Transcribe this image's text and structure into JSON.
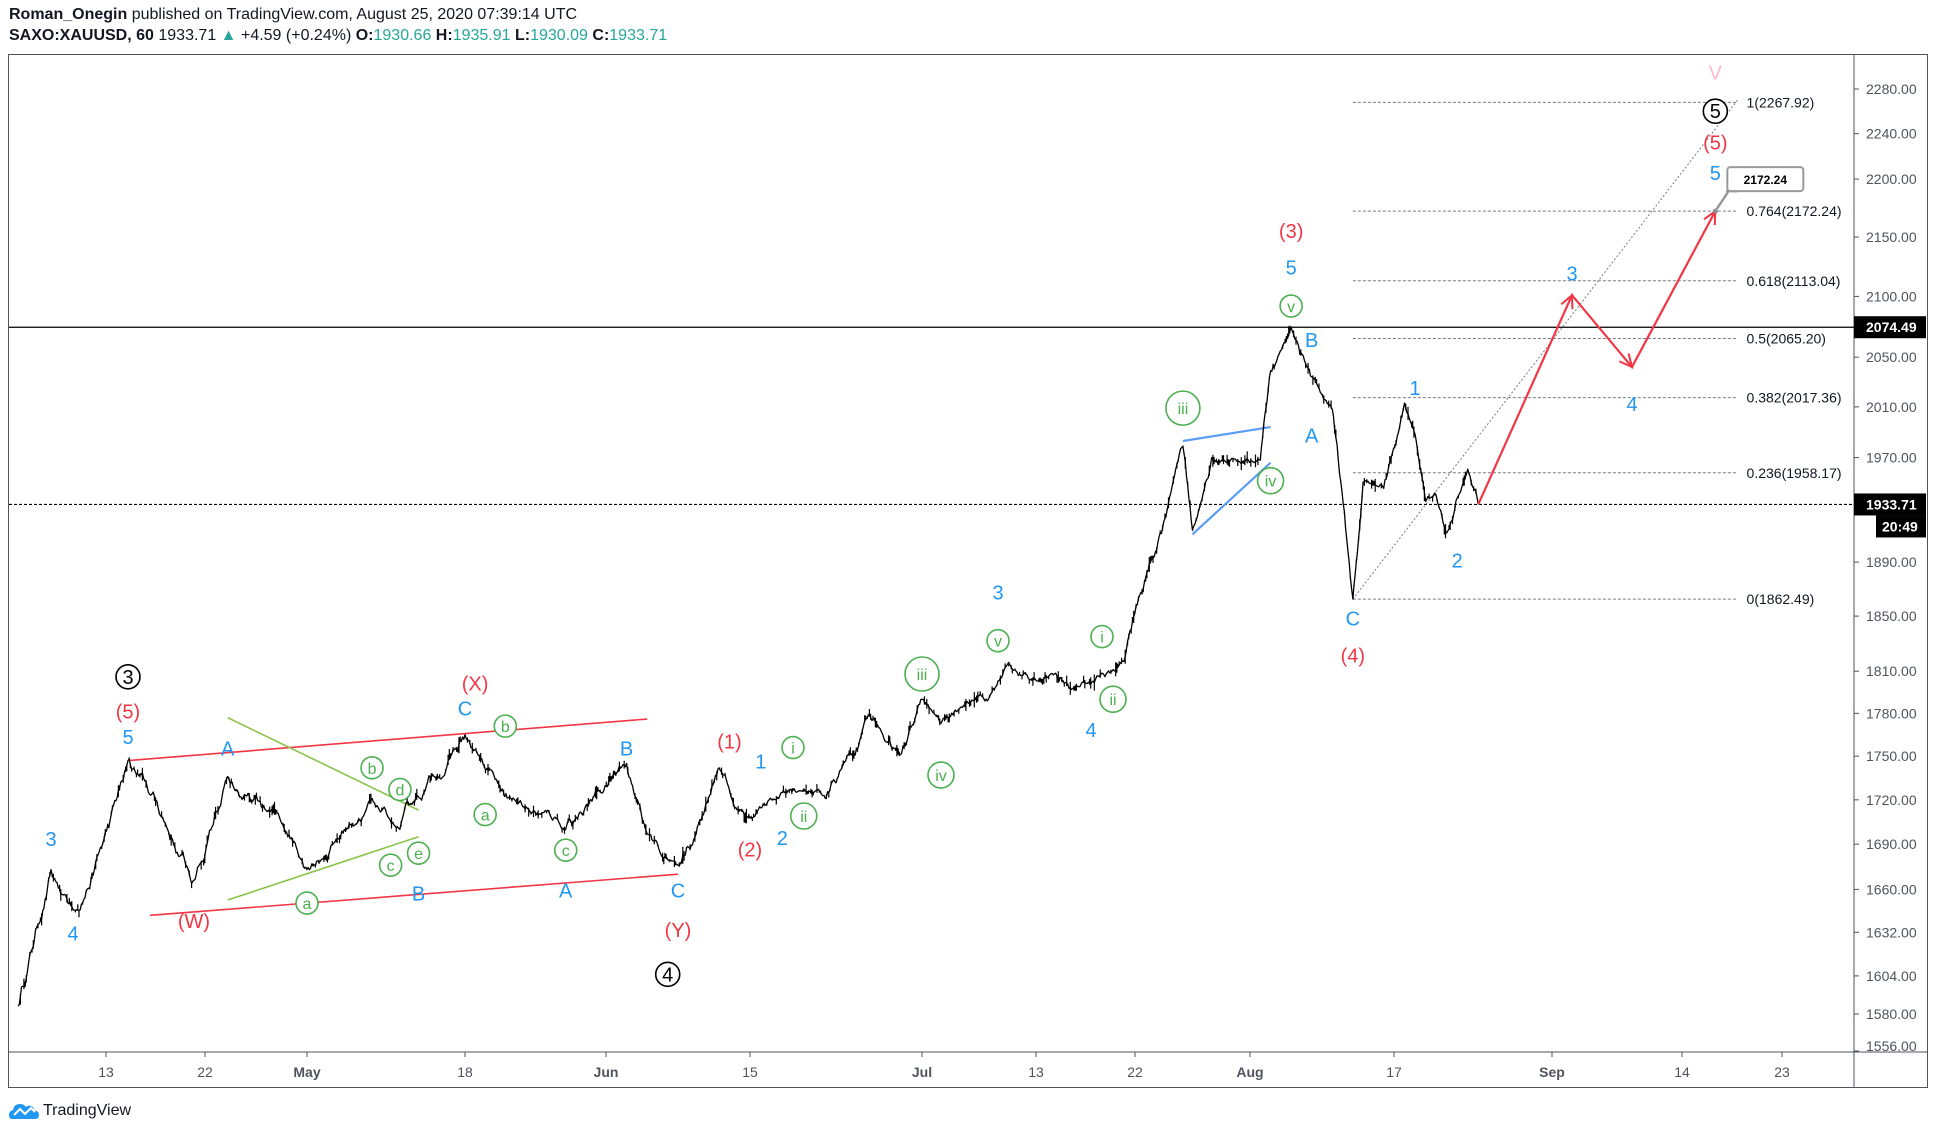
{
  "header": {
    "author": "Roman_Onegin",
    "published": "published on TradingView.com, August 25, 2020 07:39:14 UTC",
    "symbol": "SAXO:XAUUSD, 60",
    "last": "1933.71",
    "change": "+4.59 (+0.24%)",
    "o_label": "O:",
    "o": "1930.66",
    "h_label": "H:",
    "h": "1935.91",
    "l_label": "L:",
    "l": "1930.09",
    "c_label": "C:",
    "c": "1933.71"
  },
  "footer": {
    "brand": "TradingView"
  },
  "colors": {
    "blue": "#2196f3",
    "red": "#f23645",
    "green": "#4caf50",
    "black": "#000000",
    "pink": "#f8bbd0",
    "ohlc": "#26a69a",
    "channel_red": "#f23645",
    "triangle_green": "#8bc34a",
    "wedge_blue": "#5b9cf6"
  },
  "chart_data": {
    "type": "line",
    "title": "",
    "y_scale": "log",
    "ylim": [
      1556,
      2300
    ],
    "xlim": [
      "2020-04-05",
      "2020-09-28"
    ],
    "grid": false,
    "y_ticks": [
      "2280.00",
      "2240.00",
      "2200.00",
      "2150.00",
      "2100.00",
      "2050.00",
      "2010.00",
      "1970.00",
      "1890.00",
      "1850.00",
      "1810.00",
      "1780.00",
      "1750.00",
      "1720.00",
      "1690.00",
      "1660.00",
      "1632.00",
      "1604.00",
      "1580.00",
      "1556.00"
    ],
    "x_ticks": [
      {
        "date": "2020-04-13",
        "label": "13"
      },
      {
        "date": "2020-04-22",
        "label": "22"
      },
      {
        "date": "2020-05-01",
        "label": "May",
        "bold": true
      },
      {
        "date": "2020-05-18",
        "label": "18"
      },
      {
        "date": "2020-06-01",
        "label": "Jun",
        "bold": true
      },
      {
        "date": "2020-06-15",
        "label": "15"
      },
      {
        "date": "2020-07-01",
        "label": "Jul",
        "bold": true
      },
      {
        "date": "2020-07-13",
        "label": "13"
      },
      {
        "date": "2020-07-22",
        "label": "22"
      },
      {
        "date": "2020-08-03",
        "label": "Aug",
        "bold": true
      },
      {
        "date": "2020-08-17",
        "label": "17"
      },
      {
        "date": "2020-09-01",
        "label": "Sep",
        "bold": true
      },
      {
        "date": "2020-09-14",
        "label": "14"
      },
      {
        "date": "2020-09-23",
        "label": "23"
      }
    ],
    "price_swings": [
      [
        "2020-04-05",
        1585
      ],
      [
        "2020-04-08",
        1673
      ],
      [
        "2020-04-10",
        1647
      ],
      [
        "2020-04-15",
        1747
      ],
      [
        "2020-04-21",
        1666
      ],
      [
        "2020-04-24",
        1736
      ],
      [
        "2020-05-01",
        1673
      ],
      [
        "2020-05-08",
        1721
      ],
      [
        "2020-05-11",
        1700
      ],
      [
        "2020-05-18",
        1765
      ],
      [
        "2020-05-21",
        1734
      ],
      [
        "2020-05-28",
        1700
      ],
      [
        "2020-06-03",
        1745
      ],
      [
        "2020-06-05",
        1697
      ],
      [
        "2020-06-08",
        1676
      ],
      [
        "2020-06-12",
        1742
      ],
      [
        "2020-06-15",
        1708
      ],
      [
        "2020-06-18",
        1725
      ],
      [
        "2020-06-22",
        1721
      ],
      [
        "2020-06-26",
        1779
      ],
      [
        "2020-06-29",
        1751
      ],
      [
        "2020-07-01",
        1790
      ],
      [
        "2020-07-03",
        1773
      ],
      [
        "2020-07-08",
        1790
      ],
      [
        "2020-07-10",
        1815
      ],
      [
        "2020-07-17",
        1799
      ],
      [
        "2020-07-21",
        1817
      ],
      [
        "2020-07-24",
        1894
      ],
      [
        "2020-07-27",
        1979
      ],
      [
        "2020-07-28",
        1914
      ],
      [
        "2020-07-30",
        1970
      ],
      [
        "2020-08-04",
        1968
      ],
      [
        "2020-08-05",
        2039
      ],
      [
        "2020-08-07",
        2074.49
      ],
      [
        "2020-08-09",
        2034
      ],
      [
        "2020-08-11",
        2008
      ],
      [
        "2020-08-13",
        1862.49
      ],
      [
        "2020-08-14",
        1951
      ],
      [
        "2020-08-16",
        1946
      ],
      [
        "2020-08-18",
        2013
      ],
      [
        "2020-08-19",
        1988
      ],
      [
        "2020-08-20",
        1936
      ],
      [
        "2020-08-21",
        1941
      ],
      [
        "2020-08-22",
        1912
      ],
      [
        "2020-08-24",
        1961
      ],
      [
        "2020-08-25",
        1933.71
      ]
    ],
    "price_labels": {
      "high_line": "2074.49",
      "last": "1933.71",
      "countdown": "20:49"
    },
    "fib": {
      "start": "2020-08-13",
      "end": "2020-09-19",
      "levels": [
        {
          "price": 2267.92,
          "label": "1(2267.92)"
        },
        {
          "price": 2172.24,
          "label": "0.764(2172.24)"
        },
        {
          "price": 2113.04,
          "label": "0.618(2113.04)"
        },
        {
          "price": 2065.2,
          "label": "0.5(2065.20)"
        },
        {
          "price": 2017.36,
          "label": "0.382(2017.36)"
        },
        {
          "price": 1958.17,
          "label": "0.236(1958.17)"
        },
        {
          "price": 1862.49,
          "label": "0(1862.49)"
        }
      ]
    },
    "fib_trendline": [
      [
        "2020-08-13",
        1862.49
      ],
      [
        "2020-09-19",
        2270
      ]
    ],
    "callout": {
      "text": "2172.24",
      "date": "2020-09-17",
      "price": 2172.24
    },
    "projection_path": [
      [
        "2020-08-25",
        1933.71
      ],
      [
        "2020-09-03",
        2101
      ],
      [
        "2020-09-09",
        2042
      ],
      [
        "2020-09-17",
        2172.24
      ]
    ],
    "red_channel": [
      [
        [
          "2020-04-15",
          1747
        ],
        [
          "2020-06-05",
          1776
        ]
      ],
      [
        [
          "2020-04-17",
          1643
        ],
        [
          "2020-06-08",
          1670
        ]
      ]
    ],
    "green_triangle": [
      [
        [
          "2020-04-24",
          1777
        ],
        [
          "2020-05-13",
          1713
        ]
      ],
      [
        [
          "2020-04-24",
          1653
        ],
        [
          "2020-05-13",
          1695
        ]
      ]
    ],
    "blue_wedge": [
      [
        [
          "2020-07-27",
          1983
        ],
        [
          "2020-08-05",
          1994
        ]
      ],
      [
        [
          "2020-07-28",
          1911
        ],
        [
          "2020-08-05",
          1966
        ]
      ]
    ],
    "annotations": [
      {
        "t": "3",
        "c": "black",
        "circle": true,
        "d": "2020-04-15",
        "p": 1806
      },
      {
        "t": "(5)",
        "c": "red",
        "d": "2020-04-15",
        "p": 1782
      },
      {
        "t": "5",
        "c": "blue",
        "d": "2020-04-15",
        "p": 1764
      },
      {
        "t": "3",
        "c": "blue",
        "d": "2020-04-08",
        "p": 1694
      },
      {
        "t": "4",
        "c": "blue",
        "d": "2020-04-10",
        "p": 1632
      },
      {
        "t": "(W)",
        "c": "red",
        "d": "2020-04-21",
        "p": 1640
      },
      {
        "t": "A",
        "c": "blue",
        "d": "2020-04-24",
        "p": 1756
      },
      {
        "t": "a",
        "c": "green",
        "circle": true,
        "d": "2020-05-01",
        "p": 1651
      },
      {
        "t": "b",
        "c": "green",
        "circle": true,
        "d": "2020-05-08",
        "p": 1742
      },
      {
        "t": "c",
        "c": "green",
        "circle": true,
        "d": "2020-05-10",
        "p": 1676
      },
      {
        "t": "d",
        "c": "green",
        "circle": true,
        "d": "2020-05-11",
        "p": 1727
      },
      {
        "t": "e",
        "c": "green",
        "circle": true,
        "d": "2020-05-13",
        "p": 1684
      },
      {
        "t": "B",
        "c": "blue",
        "d": "2020-05-13",
        "p": 1658
      },
      {
        "t": "C",
        "c": "blue",
        "d": "2020-05-18",
        "p": 1784
      },
      {
        "t": "(X)",
        "c": "red",
        "d": "2020-05-19",
        "p": 1802
      },
      {
        "t": "a",
        "c": "green",
        "circle": true,
        "d": "2020-05-20",
        "p": 1710
      },
      {
        "t": "b",
        "c": "green",
        "circle": true,
        "d": "2020-05-22",
        "p": 1771
      },
      {
        "t": "c",
        "c": "green",
        "circle": true,
        "d": "2020-05-28",
        "p": 1686
      },
      {
        "t": "A",
        "c": "blue",
        "d": "2020-05-28",
        "p": 1660
      },
      {
        "t": "B",
        "c": "blue",
        "d": "2020-06-03",
        "p": 1756
      },
      {
        "t": "C",
        "c": "blue",
        "d": "2020-06-08",
        "p": 1660
      },
      {
        "t": "(Y)",
        "c": "red",
        "d": "2020-06-08",
        "p": 1634
      },
      {
        "t": "4",
        "c": "black",
        "circle": true,
        "d": "2020-06-07",
        "p": 1605
      },
      {
        "t": "(1)",
        "c": "red",
        "d": "2020-06-13",
        "p": 1761
      },
      {
        "t": "1",
        "c": "blue",
        "d": "2020-06-16",
        "p": 1747
      },
      {
        "t": "i",
        "c": "green",
        "circle": true,
        "d": "2020-06-19",
        "p": 1756
      },
      {
        "t": "(2)",
        "c": "red",
        "d": "2020-06-15",
        "p": 1687
      },
      {
        "t": "2",
        "c": "blue",
        "d": "2020-06-18",
        "p": 1695
      },
      {
        "t": "ii",
        "c": "green",
        "circle": true,
        "d": "2020-06-20",
        "p": 1709
      },
      {
        "t": "iii",
        "c": "green",
        "circle": true,
        "d": "2020-07-01",
        "p": 1808
      },
      {
        "t": "iv",
        "c": "green",
        "circle": true,
        "d": "2020-07-03",
        "p": 1737
      },
      {
        "t": "3",
        "c": "blue",
        "d": "2020-07-09",
        "p": 1868
      },
      {
        "t": "v",
        "c": "green",
        "circle": true,
        "d": "2020-07-09",
        "p": 1832
      },
      {
        "t": "i",
        "c": "green",
        "circle": true,
        "d": "2020-07-19",
        "p": 1835
      },
      {
        "t": "ii",
        "c": "green",
        "circle": true,
        "d": "2020-07-20",
        "p": 1790
      },
      {
        "t": "4",
        "c": "blue",
        "d": "2020-07-18",
        "p": 1769
      },
      {
        "t": "iii",
        "c": "green",
        "circle": true,
        "d": "2020-07-27",
        "p": 2009
      },
      {
        "t": "iv",
        "c": "green",
        "circle": true,
        "d": "2020-08-05",
        "p": 1952
      },
      {
        "t": "v",
        "c": "green",
        "circle": true,
        "d": "2020-08-07",
        "p": 2092
      },
      {
        "t": "5",
        "c": "blue",
        "d": "2020-08-07",
        "p": 2125
      },
      {
        "t": "(3)",
        "c": "red",
        "d": "2020-08-07",
        "p": 2156
      },
      {
        "t": "B",
        "c": "blue",
        "d": "2020-08-09",
        "p": 2065
      },
      {
        "t": "A",
        "c": "blue",
        "d": "2020-08-09",
        "p": 1988
      },
      {
        "t": "C",
        "c": "blue",
        "d": "2020-08-13",
        "p": 1849
      },
      {
        "t": "(4)",
        "c": "red",
        "d": "2020-08-13",
        "p": 1822
      },
      {
        "t": "1",
        "c": "blue",
        "d": "2020-08-19",
        "p": 2026
      },
      {
        "t": "2",
        "c": "blue",
        "d": "2020-08-23",
        "p": 1892
      },
      {
        "t": "3",
        "c": "blue",
        "d": "2020-09-03",
        "p": 2120
      },
      {
        "t": "4",
        "c": "blue",
        "d": "2020-09-09",
        "p": 2013
      },
      {
        "t": "5",
        "c": "blue",
        "d": "2020-09-17",
        "p": 2206
      },
      {
        "t": "(5)",
        "c": "red",
        "d": "2020-09-17",
        "p": 2233
      },
      {
        "t": "5",
        "c": "black",
        "circle": true,
        "d": "2020-09-17",
        "p": 2260
      },
      {
        "t": "V",
        "c": "pink",
        "d": "2020-09-17",
        "p": 2296
      }
    ]
  }
}
